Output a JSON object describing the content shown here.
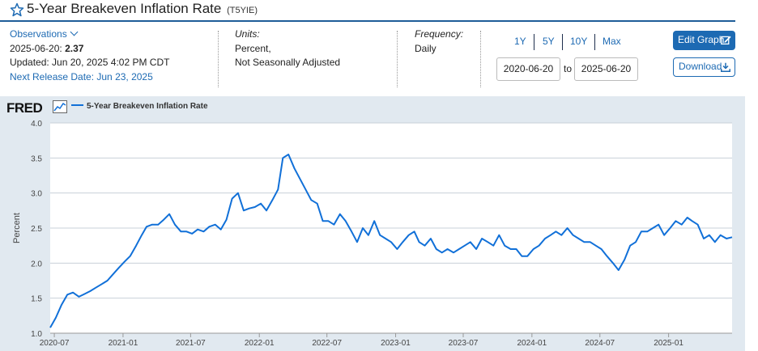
{
  "header": {
    "title": "5-Year Breakeven Inflation Rate",
    "series_id": "(T5YIE)"
  },
  "observations": {
    "label": "Observations",
    "date": "2025-06-20:",
    "value": "2.37",
    "updated": "Updated: Jun 20, 2025 4:02 PM CDT",
    "next_release": "Next Release Date: Jun 23, 2025"
  },
  "units": {
    "label": "Units:",
    "line1": "Percent,",
    "line2": "Not Seasonally Adjusted"
  },
  "frequency": {
    "label": "Frequency:",
    "value": "Daily"
  },
  "range": {
    "links": [
      "1Y",
      "5Y",
      "10Y",
      "Max"
    ],
    "start_date": "2020-06-20",
    "to_label": "to",
    "end_date": "2025-06-20"
  },
  "buttons": {
    "edit_graph": "Edit Graph",
    "download": "Download"
  },
  "colors": {
    "accent": "#1d6ab3",
    "series": "#1170d8",
    "panel_bg": "#e1e9f0"
  },
  "chart": {
    "logo": "FRED",
    "legend": "5-Year Breakeven Inflation Rate"
  },
  "chart_data": {
    "type": "line",
    "title": "",
    "xlabel": "",
    "ylabel": "Percent",
    "ylim": [
      1.0,
      4.0
    ],
    "xlim": [
      "2020-06-20",
      "2025-06-20"
    ],
    "grid": true,
    "legend_position": "top-left",
    "y_ticks": [
      "1.0",
      "1.5",
      "2.0",
      "2.5",
      "3.0",
      "3.5",
      "4.0"
    ],
    "x_ticks": [
      "2020-07",
      "2021-01",
      "2021-07",
      "2022-01",
      "2022-07",
      "2023-01",
      "2023-07",
      "2024-01",
      "2024-07",
      "2025-01"
    ],
    "series": [
      {
        "name": "5-Year Breakeven Inflation Rate",
        "x": [
          "2020-06-20",
          "2020-07-05",
          "2020-07-20",
          "2020-08-05",
          "2020-08-20",
          "2020-09-05",
          "2020-09-20",
          "2020-10-05",
          "2020-10-20",
          "2020-11-05",
          "2020-11-20",
          "2020-12-05",
          "2020-12-20",
          "2021-01-05",
          "2021-01-20",
          "2021-02-05",
          "2021-02-20",
          "2021-03-05",
          "2021-03-20",
          "2021-04-05",
          "2021-04-20",
          "2021-05-05",
          "2021-05-20",
          "2021-06-05",
          "2021-06-20",
          "2021-07-05",
          "2021-07-20",
          "2021-08-05",
          "2021-08-20",
          "2021-09-05",
          "2021-09-20",
          "2021-10-05",
          "2021-10-20",
          "2021-11-05",
          "2021-11-20",
          "2021-12-05",
          "2021-12-20",
          "2022-01-05",
          "2022-01-20",
          "2022-02-05",
          "2022-02-20",
          "2022-03-05",
          "2022-03-20",
          "2022-04-05",
          "2022-04-20",
          "2022-05-05",
          "2022-05-20",
          "2022-06-05",
          "2022-06-20",
          "2022-07-05",
          "2022-07-20",
          "2022-08-05",
          "2022-08-20",
          "2022-09-05",
          "2022-09-20",
          "2022-10-05",
          "2022-10-20",
          "2022-11-05",
          "2022-11-20",
          "2022-12-05",
          "2022-12-20",
          "2023-01-05",
          "2023-01-20",
          "2023-02-05",
          "2023-02-20",
          "2023-03-05",
          "2023-03-20",
          "2023-04-05",
          "2023-04-20",
          "2023-05-05",
          "2023-05-20",
          "2023-06-05",
          "2023-06-20",
          "2023-07-05",
          "2023-07-20",
          "2023-08-05",
          "2023-08-20",
          "2023-09-05",
          "2023-09-20",
          "2023-10-05",
          "2023-10-20",
          "2023-11-05",
          "2023-11-20",
          "2023-12-05",
          "2023-12-20",
          "2024-01-05",
          "2024-01-20",
          "2024-02-05",
          "2024-02-20",
          "2024-03-05",
          "2024-03-20",
          "2024-04-05",
          "2024-04-20",
          "2024-05-05",
          "2024-05-20",
          "2024-06-05",
          "2024-06-20",
          "2024-07-05",
          "2024-07-20",
          "2024-08-05",
          "2024-08-20",
          "2024-09-05",
          "2024-09-20",
          "2024-10-05",
          "2024-10-20",
          "2024-11-05",
          "2024-11-20",
          "2024-12-05",
          "2024-12-20",
          "2025-01-05",
          "2025-01-20",
          "2025-02-05",
          "2025-02-20",
          "2025-03-05",
          "2025-03-20",
          "2025-04-05",
          "2025-04-20",
          "2025-05-05",
          "2025-05-20",
          "2025-06-05",
          "2025-06-20"
        ],
        "values": [
          1.08,
          1.22,
          1.4,
          1.55,
          1.58,
          1.52,
          1.56,
          1.6,
          1.65,
          1.7,
          1.75,
          1.84,
          1.93,
          2.02,
          2.1,
          2.25,
          2.4,
          2.52,
          2.55,
          2.55,
          2.62,
          2.7,
          2.55,
          2.45,
          2.45,
          2.42,
          2.48,
          2.45,
          2.52,
          2.55,
          2.48,
          2.62,
          2.92,
          3.0,
          2.75,
          2.78,
          2.8,
          2.85,
          2.75,
          2.9,
          3.05,
          3.5,
          3.55,
          3.35,
          3.2,
          3.05,
          2.9,
          2.85,
          2.6,
          2.6,
          2.55,
          2.7,
          2.6,
          2.45,
          2.3,
          2.5,
          2.4,
          2.6,
          2.4,
          2.35,
          2.3,
          2.2,
          2.3,
          2.4,
          2.45,
          2.3,
          2.25,
          2.35,
          2.2,
          2.15,
          2.2,
          2.15,
          2.2,
          2.25,
          2.3,
          2.2,
          2.35,
          2.3,
          2.25,
          2.4,
          2.25,
          2.2,
          2.2,
          2.1,
          2.1,
          2.2,
          2.25,
          2.35,
          2.4,
          2.45,
          2.4,
          2.5,
          2.4,
          2.35,
          2.3,
          2.3,
          2.25,
          2.2,
          2.1,
          2.0,
          1.9,
          2.05,
          2.25,
          2.3,
          2.45,
          2.45,
          2.5,
          2.55,
          2.4,
          2.5,
          2.6,
          2.55,
          2.65,
          2.6,
          2.55,
          2.35,
          2.4,
          2.3,
          2.4,
          2.35,
          2.37
        ]
      }
    ]
  }
}
